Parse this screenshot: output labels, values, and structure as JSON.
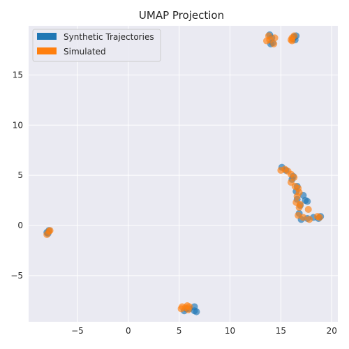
{
  "chart_data": {
    "type": "scatter",
    "title": "UMAP Projection",
    "xlabel": "",
    "ylabel": "",
    "xlim": [
      -9.8,
      20.6
    ],
    "ylim": [
      -9.6,
      19.9
    ],
    "xticks": [
      -5,
      0,
      5,
      10,
      15,
      20
    ],
    "yticks": [
      -5,
      0,
      5,
      10,
      15
    ],
    "tick_labels_x": [
      "−5",
      "0",
      "5",
      "10",
      "15",
      "20"
    ],
    "tick_labels_y": [
      "−5",
      "0",
      "5",
      "10",
      "15"
    ],
    "grid": true,
    "legend_position": "top-left",
    "series": [
      {
        "name": "Synthetic Trajectories",
        "color": "#1f77b4",
        "points": [
          [
            13.9,
            19.0
          ],
          [
            14.1,
            18.7
          ],
          [
            14.2,
            18.2
          ],
          [
            14.0,
            18.1
          ],
          [
            16.3,
            18.8
          ],
          [
            16.5,
            18.9
          ],
          [
            16.2,
            18.6
          ],
          [
            16.4,
            18.5
          ],
          [
            15.1,
            5.8
          ],
          [
            15.5,
            5.5
          ],
          [
            16.2,
            4.9
          ],
          [
            16.1,
            4.6
          ],
          [
            16.6,
            3.9
          ],
          [
            16.5,
            3.4
          ],
          [
            17.2,
            3.0
          ],
          [
            17.4,
            2.5
          ],
          [
            16.9,
            2.0
          ],
          [
            16.6,
            2.6
          ],
          [
            17.6,
            2.4
          ],
          [
            16.8,
            1.2
          ],
          [
            17.0,
            0.6
          ],
          [
            17.6,
            0.7
          ],
          [
            18.2,
            0.8
          ],
          [
            18.7,
            0.7
          ],
          [
            18.9,
            0.9
          ],
          [
            -7.8,
            -0.5
          ],
          [
            -8.0,
            -0.7
          ],
          [
            -7.9,
            -0.8
          ],
          [
            6.5,
            -8.1
          ],
          [
            6.7,
            -8.6
          ],
          [
            6.5,
            -8.5
          ],
          [
            5.7,
            -8.3
          ],
          [
            5.5,
            -8.5
          ],
          [
            6.0,
            -8.3
          ]
        ]
      },
      {
        "name": "Simulated",
        "color": "#ff7f0e",
        "points": [
          [
            13.6,
            18.4
          ],
          [
            13.8,
            18.9
          ],
          [
            14.3,
            18.1
          ],
          [
            14.4,
            18.7
          ],
          [
            13.9,
            18.5
          ],
          [
            16.0,
            18.5
          ],
          [
            16.1,
            18.7
          ],
          [
            16.3,
            18.9
          ],
          [
            16.1,
            18.4
          ],
          [
            15.0,
            5.5
          ],
          [
            15.4,
            5.6
          ],
          [
            15.7,
            5.4
          ],
          [
            16.0,
            5.1
          ],
          [
            16.3,
            4.8
          ],
          [
            16.0,
            4.3
          ],
          [
            16.4,
            3.9
          ],
          [
            16.7,
            3.7
          ],
          [
            16.8,
            3.3
          ],
          [
            16.6,
            2.9
          ],
          [
            16.5,
            2.3
          ],
          [
            16.9,
            2.1
          ],
          [
            16.8,
            1.8
          ],
          [
            17.7,
            1.6
          ],
          [
            16.7,
            1.0
          ],
          [
            17.2,
            0.8
          ],
          [
            17.8,
            0.6
          ],
          [
            18.8,
            0.8
          ],
          [
            18.6,
            0.9
          ],
          [
            -8.0,
            -0.9
          ],
          [
            -7.8,
            -0.6
          ],
          [
            -7.7,
            -0.5
          ],
          [
            5.3,
            -8.1
          ],
          [
            5.6,
            -8.2
          ],
          [
            5.8,
            -8.0
          ],
          [
            6.0,
            -8.1
          ],
          [
            5.2,
            -8.3
          ],
          [
            5.9,
            -8.4
          ]
        ]
      }
    ]
  }
}
